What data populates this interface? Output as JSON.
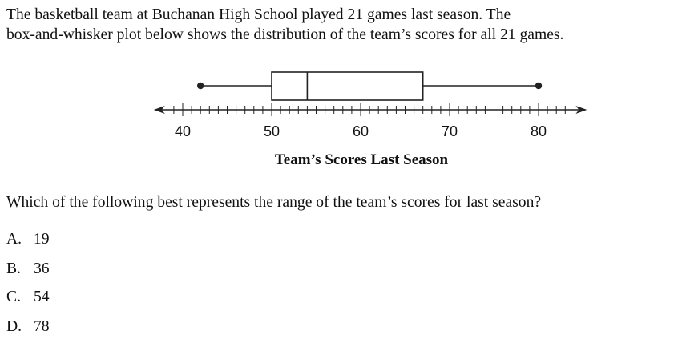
{
  "problem": {
    "intro_line_1": "The basketball team at Buchanan High School played 21 games last season. The",
    "intro_line_2": "box-and-whisker plot below shows the distribution of the team’s scores for all 21 games.",
    "question": "Which of the following best represents the range of the team’s scores for last season?",
    "choices": [
      {
        "letter": "A.",
        "text": "19"
      },
      {
        "letter": "B.",
        "text": "36"
      },
      {
        "letter": "C.",
        "text": "54"
      },
      {
        "letter": "D.",
        "text": "78"
      }
    ]
  },
  "chart_data": {
    "type": "box",
    "title": "",
    "xlabel": "Team’s Scores Last Season",
    "ylabel": "",
    "xlim": [
      38,
      84
    ],
    "ticks": [
      40,
      50,
      60,
      70,
      80
    ],
    "minor_tick_step": 1,
    "five_number_summary": {
      "min": 42,
      "q1": 50,
      "median": 54,
      "q3": 67,
      "max": 80
    }
  }
}
